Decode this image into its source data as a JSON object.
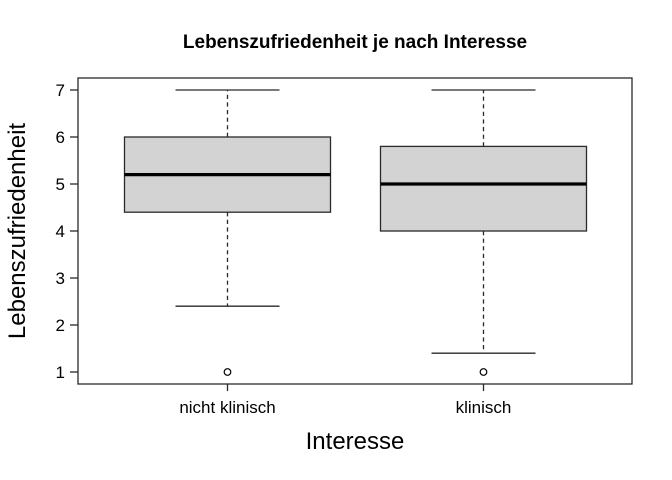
{
  "figure": {
    "background": "#ffffff"
  },
  "chart_data": {
    "type": "boxplot",
    "title": "Lebenszufriedenheit je nach Interesse",
    "xlabel": "Interesse",
    "ylabel": "Lebenszufriedenheit",
    "categories": [
      "nicht klinisch",
      "klinisch"
    ],
    "ylim": [
      1,
      7
    ],
    "yticks": [
      1,
      2,
      3,
      4,
      5,
      6,
      7
    ],
    "grid": false,
    "legend": false,
    "series": [
      {
        "name": "nicht klinisch",
        "whisker_low": 2.4,
        "q1": 4.4,
        "median": 5.2,
        "q3": 6.0,
        "whisker_high": 7.0,
        "outliers": [
          1.0
        ]
      },
      {
        "name": "klinisch",
        "whisker_low": 1.4,
        "q1": 4.0,
        "median": 5.0,
        "q3": 5.8,
        "whisker_high": 7.0,
        "outliers": [
          1.0
        ]
      }
    ],
    "box_fill": "#d3d3d3",
    "line_color": "#2a2a2a",
    "median_color": "#000000"
  }
}
